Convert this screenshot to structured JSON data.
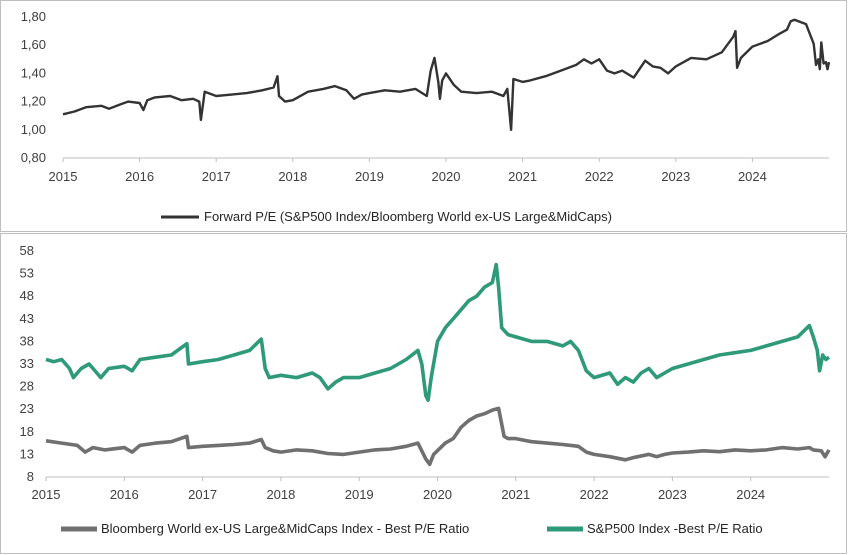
{
  "colors": {
    "forward_pe": "#333333",
    "world_ex_us": "#707070",
    "sp500": "#2e9a7a"
  },
  "chart_data": [
    {
      "type": "line",
      "xlabel": "",
      "ylabel": "",
      "x_ticks": [
        "2015",
        "2016",
        "2017",
        "2018",
        "2019",
        "2020",
        "2021",
        "2022",
        "2023",
        "2024"
      ],
      "y_ticks": [
        "0,80",
        "1,00",
        "1,20",
        "1,40",
        "1,60",
        "1,80"
      ],
      "xlim": [
        2015.0,
        2025.0
      ],
      "ylim": [
        0.8,
        1.8
      ],
      "legend_position": "bottom",
      "series": [
        {
          "name": "Forward P/E (S&P500 Index/Bloomberg World ex-US Large&MidCaps)",
          "color": "#333333",
          "points": [
            [
              2015.0,
              1.11
            ],
            [
              2015.15,
              1.13
            ],
            [
              2015.3,
              1.16
            ],
            [
              2015.5,
              1.17
            ],
            [
              2015.6,
              1.15
            ],
            [
              2015.75,
              1.18
            ],
            [
              2015.85,
              1.2
            ],
            [
              2016.0,
              1.19
            ],
            [
              2016.05,
              1.14
            ],
            [
              2016.1,
              1.21
            ],
            [
              2016.2,
              1.23
            ],
            [
              2016.4,
              1.24
            ],
            [
              2016.55,
              1.21
            ],
            [
              2016.7,
              1.22
            ],
            [
              2016.78,
              1.2
            ],
            [
              2016.8,
              1.07
            ],
            [
              2016.85,
              1.27
            ],
            [
              2017.0,
              1.24
            ],
            [
              2017.2,
              1.25
            ],
            [
              2017.4,
              1.26
            ],
            [
              2017.6,
              1.28
            ],
            [
              2017.75,
              1.3
            ],
            [
              2017.8,
              1.38
            ],
            [
              2017.82,
              1.24
            ],
            [
              2017.9,
              1.2
            ],
            [
              2018.0,
              1.21
            ],
            [
              2018.2,
              1.27
            ],
            [
              2018.4,
              1.29
            ],
            [
              2018.55,
              1.31
            ],
            [
              2018.7,
              1.28
            ],
            [
              2018.8,
              1.22
            ],
            [
              2018.9,
              1.25
            ],
            [
              2019.0,
              1.26
            ],
            [
              2019.2,
              1.28
            ],
            [
              2019.4,
              1.27
            ],
            [
              2019.6,
              1.29
            ],
            [
              2019.75,
              1.24
            ],
            [
              2019.8,
              1.42
            ],
            [
              2019.85,
              1.51
            ],
            [
              2019.9,
              1.34
            ],
            [
              2019.92,
              1.22
            ],
            [
              2019.95,
              1.35
            ],
            [
              2020.0,
              1.4
            ],
            [
              2020.1,
              1.32
            ],
            [
              2020.2,
              1.27
            ],
            [
              2020.4,
              1.26
            ],
            [
              2020.6,
              1.27
            ],
            [
              2020.75,
              1.24
            ],
            [
              2020.8,
              1.29
            ],
            [
              2020.85,
              1.0
            ],
            [
              2020.88,
              1.36
            ],
            [
              2021.0,
              1.34
            ],
            [
              2021.1,
              1.35
            ],
            [
              2021.3,
              1.38
            ],
            [
              2021.5,
              1.42
            ],
            [
              2021.6,
              1.44
            ],
            [
              2021.7,
              1.46
            ],
            [
              2021.8,
              1.5
            ],
            [
              2021.9,
              1.47
            ],
            [
              2022.0,
              1.5
            ],
            [
              2022.1,
              1.42
            ],
            [
              2022.2,
              1.4
            ],
            [
              2022.3,
              1.42
            ],
            [
              2022.45,
              1.37
            ],
            [
              2022.6,
              1.49
            ],
            [
              2022.7,
              1.45
            ],
            [
              2022.8,
              1.44
            ],
            [
              2022.9,
              1.4
            ],
            [
              2023.0,
              1.45
            ],
            [
              2023.2,
              1.51
            ],
            [
              2023.4,
              1.5
            ],
            [
              2023.6,
              1.55
            ],
            [
              2023.75,
              1.66
            ],
            [
              2023.78,
              1.7
            ],
            [
              2023.8,
              1.44
            ],
            [
              2023.85,
              1.51
            ],
            [
              2024.0,
              1.59
            ],
            [
              2024.2,
              1.63
            ],
            [
              2024.35,
              1.68
            ],
            [
              2024.45,
              1.71
            ],
            [
              2024.5,
              1.77
            ],
            [
              2024.55,
              1.78
            ],
            [
              2024.7,
              1.75
            ],
            [
              2024.8,
              1.61
            ],
            [
              2024.83,
              1.46
            ],
            [
              2024.86,
              1.5
            ],
            [
              2024.88,
              1.43
            ],
            [
              2024.9,
              1.62
            ],
            [
              2024.93,
              1.47
            ],
            [
              2024.96,
              1.48
            ],
            [
              2024.98,
              1.43
            ],
            [
              2025.0,
              1.48
            ]
          ]
        }
      ]
    },
    {
      "type": "line",
      "xlabel": "",
      "ylabel": "",
      "x_ticks": [
        "2015",
        "2016",
        "2017",
        "2018",
        "2019",
        "2020",
        "2021",
        "2022",
        "2023",
        "2024"
      ],
      "y_ticks": [
        "8",
        "13",
        "18",
        "23",
        "28",
        "33",
        "38",
        "43",
        "48",
        "53",
        "58"
      ],
      "xlim": [
        2015.0,
        2025.0
      ],
      "ylim": [
        8,
        58
      ],
      "legend_position": "bottom",
      "series": [
        {
          "name": "Bloomberg World ex-US Large&MidCaps Index - Best P/E Ratio",
          "color": "#707070",
          "points": [
            [
              2015.0,
              16.0
            ],
            [
              2015.2,
              15.5
            ],
            [
              2015.4,
              15.0
            ],
            [
              2015.5,
              13.5
            ],
            [
              2015.6,
              14.5
            ],
            [
              2015.75,
              14.0
            ],
            [
              2016.0,
              14.5
            ],
            [
              2016.1,
              13.5
            ],
            [
              2016.2,
              15.0
            ],
            [
              2016.4,
              15.5
            ],
            [
              2016.6,
              15.8
            ],
            [
              2016.8,
              17.0
            ],
            [
              2016.82,
              14.5
            ],
            [
              2017.0,
              14.8
            ],
            [
              2017.2,
              15.0
            ],
            [
              2017.4,
              15.2
            ],
            [
              2017.6,
              15.5
            ],
            [
              2017.75,
              16.3
            ],
            [
              2017.8,
              14.5
            ],
            [
              2017.9,
              13.8
            ],
            [
              2018.0,
              13.5
            ],
            [
              2018.2,
              14.0
            ],
            [
              2018.4,
              13.8
            ],
            [
              2018.6,
              13.2
            ],
            [
              2018.8,
              13.0
            ],
            [
              2019.0,
              13.5
            ],
            [
              2019.2,
              14.0
            ],
            [
              2019.4,
              14.2
            ],
            [
              2019.6,
              14.8
            ],
            [
              2019.75,
              15.5
            ],
            [
              2019.85,
              12.0
            ],
            [
              2019.9,
              10.8
            ],
            [
              2019.95,
              13.0
            ],
            [
              2020.1,
              15.5
            ],
            [
              2020.2,
              16.5
            ],
            [
              2020.3,
              19.0
            ],
            [
              2020.4,
              20.5
            ],
            [
              2020.5,
              21.5
            ],
            [
              2020.6,
              22.0
            ],
            [
              2020.7,
              22.8
            ],
            [
              2020.78,
              23.2
            ],
            [
              2020.8,
              21.5
            ],
            [
              2020.85,
              17.0
            ],
            [
              2020.9,
              16.5
            ],
            [
              2021.0,
              16.5
            ],
            [
              2021.2,
              15.8
            ],
            [
              2021.4,
              15.5
            ],
            [
              2021.6,
              15.2
            ],
            [
              2021.8,
              14.8
            ],
            [
              2021.9,
              13.5
            ],
            [
              2022.0,
              13.0
            ],
            [
              2022.2,
              12.5
            ],
            [
              2022.4,
              11.8
            ],
            [
              2022.5,
              12.3
            ],
            [
              2022.7,
              13.0
            ],
            [
              2022.8,
              12.5
            ],
            [
              2022.9,
              13.0
            ],
            [
              2023.0,
              13.3
            ],
            [
              2023.2,
              13.5
            ],
            [
              2023.4,
              13.8
            ],
            [
              2023.6,
              13.6
            ],
            [
              2023.8,
              14.0
            ],
            [
              2024.0,
              13.8
            ],
            [
              2024.2,
              14.0
            ],
            [
              2024.4,
              14.5
            ],
            [
              2024.6,
              14.2
            ],
            [
              2024.75,
              14.5
            ],
            [
              2024.8,
              14.0
            ],
            [
              2024.9,
              13.8
            ],
            [
              2024.95,
              12.5
            ],
            [
              2025.0,
              14.0
            ]
          ]
        },
        {
          "name": "S&P500 Index -Best P/E Ratio",
          "color": "#2e9a7a",
          "points": [
            [
              2015.0,
              34.0
            ],
            [
              2015.1,
              33.5
            ],
            [
              2015.2,
              34.0
            ],
            [
              2015.3,
              32.0
            ],
            [
              2015.35,
              30.0
            ],
            [
              2015.45,
              32.0
            ],
            [
              2015.55,
              33.0
            ],
            [
              2015.65,
              31.0
            ],
            [
              2015.7,
              30.0
            ],
            [
              2015.8,
              32.0
            ],
            [
              2016.0,
              32.5
            ],
            [
              2016.1,
              31.5
            ],
            [
              2016.2,
              34.0
            ],
            [
              2016.4,
              34.5
            ],
            [
              2016.6,
              35.0
            ],
            [
              2016.8,
              37.5
            ],
            [
              2016.82,
              33.0
            ],
            [
              2017.0,
              33.5
            ],
            [
              2017.2,
              34.0
            ],
            [
              2017.4,
              35.0
            ],
            [
              2017.6,
              36.0
            ],
            [
              2017.75,
              38.5
            ],
            [
              2017.8,
              32.0
            ],
            [
              2017.85,
              30.0
            ],
            [
              2018.0,
              30.5
            ],
            [
              2018.2,
              30.0
            ],
            [
              2018.4,
              31.0
            ],
            [
              2018.5,
              30.0
            ],
            [
              2018.6,
              27.5
            ],
            [
              2018.7,
              29.0
            ],
            [
              2018.8,
              30.0
            ],
            [
              2019.0,
              30.0
            ],
            [
              2019.2,
              31.0
            ],
            [
              2019.4,
              32.0
            ],
            [
              2019.6,
              34.0
            ],
            [
              2019.75,
              36.0
            ],
            [
              2019.8,
              33.0
            ],
            [
              2019.85,
              26.0
            ],
            [
              2019.88,
              25.0
            ],
            [
              2019.92,
              30.0
            ],
            [
              2020.0,
              38.0
            ],
            [
              2020.1,
              41.0
            ],
            [
              2020.2,
              43.0
            ],
            [
              2020.3,
              45.0
            ],
            [
              2020.4,
              47.0
            ],
            [
              2020.5,
              48.0
            ],
            [
              2020.6,
              50.0
            ],
            [
              2020.7,
              51.0
            ],
            [
              2020.75,
              55.0
            ],
            [
              2020.78,
              50.0
            ],
            [
              2020.82,
              41.0
            ],
            [
              2020.9,
              39.5
            ],
            [
              2021.0,
              39.0
            ],
            [
              2021.2,
              38.0
            ],
            [
              2021.4,
              38.0
            ],
            [
              2021.6,
              37.0
            ],
            [
              2021.7,
              38.0
            ],
            [
              2021.8,
              36.0
            ],
            [
              2021.9,
              31.5
            ],
            [
              2022.0,
              30.0
            ],
            [
              2022.2,
              31.0
            ],
            [
              2022.3,
              28.5
            ],
            [
              2022.4,
              30.0
            ],
            [
              2022.5,
              29.0
            ],
            [
              2022.6,
              31.0
            ],
            [
              2022.7,
              32.0
            ],
            [
              2022.8,
              30.0
            ],
            [
              2022.9,
              31.0
            ],
            [
              2023.0,
              32.0
            ],
            [
              2023.2,
              33.0
            ],
            [
              2023.4,
              34.0
            ],
            [
              2023.6,
              35.0
            ],
            [
              2023.8,
              35.5
            ],
            [
              2024.0,
              36.0
            ],
            [
              2024.2,
              37.0
            ],
            [
              2024.4,
              38.0
            ],
            [
              2024.6,
              39.0
            ],
            [
              2024.75,
              41.5
            ],
            [
              2024.8,
              39.0
            ],
            [
              2024.85,
              36.0
            ],
            [
              2024.88,
              31.5
            ],
            [
              2024.92,
              35.0
            ],
            [
              2024.96,
              34.0
            ],
            [
              2025.0,
              34.5
            ]
          ]
        }
      ]
    }
  ]
}
